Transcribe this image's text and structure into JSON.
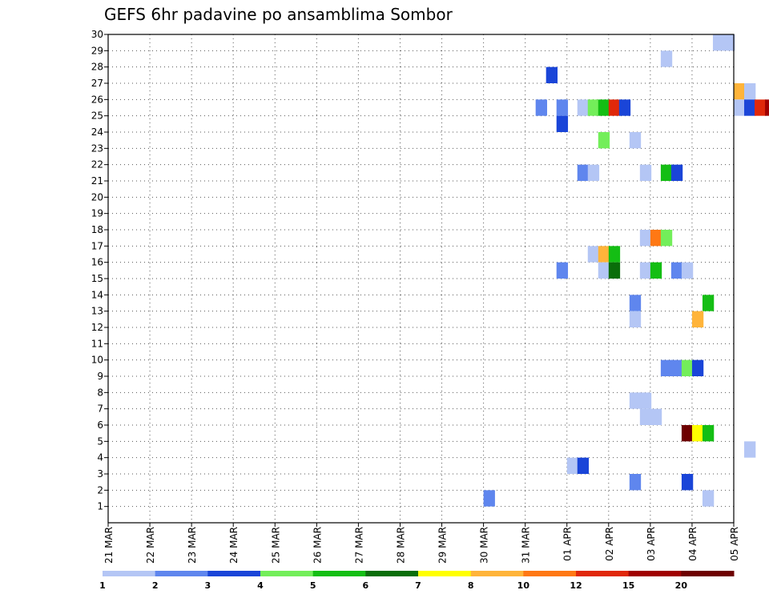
{
  "chart_data": {
    "type": "heatmap",
    "title": "GEFS 6hr padavine po ansamblima Sombor",
    "xlabel": "",
    "ylabel": "",
    "x_ticks": [
      "21 MAR",
      "22 MAR",
      "23 MAR",
      "24 MAR",
      "25 MAR",
      "26 MAR",
      "27 MAR",
      "28 MAR",
      "29 MAR",
      "30 MAR",
      "31 MAR",
      "01 APR",
      "02 APR",
      "03 APR",
      "04 APR",
      "05 APR"
    ],
    "x_steps_per_tick": 4,
    "y_ticks": [
      1,
      2,
      3,
      4,
      5,
      6,
      7,
      8,
      9,
      10,
      11,
      12,
      13,
      14,
      15,
      16,
      17,
      18,
      19,
      20,
      21,
      22,
      23,
      24,
      25,
      26,
      27,
      28,
      29,
      30
    ],
    "ylim": [
      0,
      30
    ],
    "grid": true,
    "colorbar": {
      "placement": "bottom",
      "labels": [
        "1",
        "2",
        "3",
        "4",
        "5",
        "6",
        "7",
        "8",
        "10",
        "12",
        "15",
        "20"
      ],
      "colors": [
        "#b4c6f5",
        "#5f86ee",
        "#1a45d8",
        "#73ee5a",
        "#14be14",
        "#0a6e0a",
        "#ffff00",
        "#ffb43a",
        "#ff7814",
        "#e0280a",
        "#a00000",
        "#6e0000"
      ]
    },
    "cells": [
      {
        "x": 29.5,
        "y": 29,
        "v": 1
      },
      {
        "x": 30,
        "y": 29,
        "v": 1
      },
      {
        "x": 27,
        "y": 28,
        "v": 1
      },
      {
        "x": 21.5,
        "y": 27,
        "v": 3
      },
      {
        "x": 30.5,
        "y": 26,
        "v": 8
      },
      {
        "x": 31,
        "y": 26,
        "v": 1
      },
      {
        "x": 35.5,
        "y": 26,
        "v": 4
      },
      {
        "x": 36,
        "y": 26,
        "v": 2
      },
      {
        "x": 21,
        "y": 25,
        "v": 2
      },
      {
        "x": 22,
        "y": 25,
        "v": 2
      },
      {
        "x": 23,
        "y": 25,
        "v": 1
      },
      {
        "x": 23.5,
        "y": 25,
        "v": 4
      },
      {
        "x": 24,
        "y": 25,
        "v": 5
      },
      {
        "x": 24.5,
        "y": 25,
        "v": 12
      },
      {
        "x": 25,
        "y": 25,
        "v": 3
      },
      {
        "x": 30.5,
        "y": 25,
        "v": 1
      },
      {
        "x": 31,
        "y": 25,
        "v": 3
      },
      {
        "x": 31.5,
        "y": 25,
        "v": 12
      },
      {
        "x": 32,
        "y": 25,
        "v": 15
      },
      {
        "x": 32.5,
        "y": 25,
        "v": 1
      },
      {
        "x": 22,
        "y": 24,
        "v": 3
      },
      {
        "x": 24,
        "y": 23,
        "v": 4
      },
      {
        "x": 25.5,
        "y": 23,
        "v": 1
      },
      {
        "x": 35,
        "y": 23,
        "v": 1
      },
      {
        "x": 23,
        "y": 21,
        "v": 2
      },
      {
        "x": 23.5,
        "y": 21,
        "v": 1
      },
      {
        "x": 26,
        "y": 21,
        "v": 1
      },
      {
        "x": 27,
        "y": 21,
        "v": 5
      },
      {
        "x": 27.5,
        "y": 21,
        "v": 3
      },
      {
        "x": 36,
        "y": 19,
        "v": 3
      },
      {
        "x": 26,
        "y": 17,
        "v": 1
      },
      {
        "x": 26.5,
        "y": 17,
        "v": 10
      },
      {
        "x": 27,
        "y": 17,
        "v": 4
      },
      {
        "x": 23.5,
        "y": 16,
        "v": 1
      },
      {
        "x": 24,
        "y": 16,
        "v": 8
      },
      {
        "x": 24.5,
        "y": 16,
        "v": 5
      },
      {
        "x": 22,
        "y": 15,
        "v": 2
      },
      {
        "x": 24,
        "y": 15,
        "v": 1
      },
      {
        "x": 24.5,
        "y": 15,
        "v": 6
      },
      {
        "x": 26,
        "y": 15,
        "v": 1
      },
      {
        "x": 26.5,
        "y": 15,
        "v": 5
      },
      {
        "x": 27.5,
        "y": 15,
        "v": 2
      },
      {
        "x": 28,
        "y": 15,
        "v": 1
      },
      {
        "x": 32.5,
        "y": 14,
        "v": 1
      },
      {
        "x": 34.5,
        "y": 14,
        "v": 4
      },
      {
        "x": 25.5,
        "y": 13,
        "v": 2
      },
      {
        "x": 29,
        "y": 13,
        "v": 5
      },
      {
        "x": 25.5,
        "y": 12,
        "v": 1
      },
      {
        "x": 28.5,
        "y": 12,
        "v": 8
      },
      {
        "x": 35,
        "y": 11,
        "v": 7
      },
      {
        "x": 35.5,
        "y": 11,
        "v": 4
      },
      {
        "x": 27,
        "y": 9,
        "v": 2
      },
      {
        "x": 27.5,
        "y": 9,
        "v": 2
      },
      {
        "x": 28,
        "y": 9,
        "v": 4
      },
      {
        "x": 28.5,
        "y": 9,
        "v": 3
      },
      {
        "x": 25.5,
        "y": 7,
        "v": 1
      },
      {
        "x": 26,
        "y": 7,
        "v": 1
      },
      {
        "x": 26,
        "y": 6,
        "v": 1
      },
      {
        "x": 26.5,
        "y": 6,
        "v": 1
      },
      {
        "x": 28,
        "y": 5,
        "v": 20
      },
      {
        "x": 28.5,
        "y": 5,
        "v": 7
      },
      {
        "x": 29,
        "y": 5,
        "v": 5
      },
      {
        "x": 31,
        "y": 4,
        "v": 1
      },
      {
        "x": 22.5,
        "y": 3,
        "v": 1
      },
      {
        "x": 23,
        "y": 3,
        "v": 3
      },
      {
        "x": 25.5,
        "y": 2,
        "v": 2
      },
      {
        "x": 28,
        "y": 2,
        "v": 3
      },
      {
        "x": 18.5,
        "y": 1,
        "v": 2
      },
      {
        "x": 29,
        "y": 1,
        "v": 1
      }
    ]
  }
}
